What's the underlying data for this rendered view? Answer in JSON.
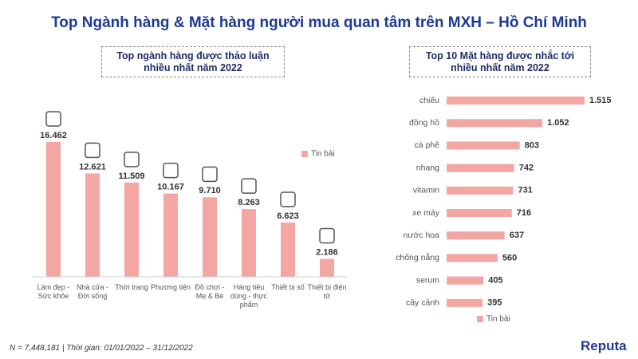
{
  "title": "Top Ngành hàng & Mặt hàng người mua quan tâm trên MXH – Hồ Chí Minh",
  "footnote": "N = 7,448,181 | Thời gian: 01/01/2022 – 31/12/2022",
  "logo": "Reputa",
  "chart_data": [
    {
      "type": "bar",
      "title": "Top ngành hàng được thảo luận nhiều nhất năm 2022",
      "categories": [
        "Làm đẹp - Sức khỏe",
        "Nhà cửa - Đời sống",
        "Thời trang",
        "Phương tiện",
        "Đồ chơi - Mẹ & Bé",
        "Hàng tiêu dùng - thực phẩm",
        "Thiết bị số",
        "Thiết bị điện tử"
      ],
      "series": [
        {
          "name": "Tin bài",
          "color": "#f4a6a3",
          "values": [
            16462,
            12621,
            11509,
            10167,
            9710,
            8263,
            6623,
            2186
          ],
          "value_labels": [
            "16.462",
            "12.621",
            "11.509",
            "10.167",
            "9.710",
            "8.263",
            "6.623",
            "2.186"
          ]
        }
      ],
      "legend": "upper right"
    },
    {
      "type": "hbar",
      "title": "Top 10 Mặt hàng được nhắc tới nhiều nhất năm 2022",
      "categories": [
        "chiếu",
        "đồng hồ",
        "cà phê",
        "nhang",
        "vitamin",
        "xe máy",
        "nước hoa",
        "chống nắng",
        "serum",
        "cây cảnh"
      ],
      "series": [
        {
          "name": "Tin bài",
          "color": "#f4a6a3",
          "values": [
            1515,
            1052,
            803,
            742,
            731,
            716,
            637,
            560,
            405,
            395
          ],
          "value_labels": [
            "1.515",
            "1.052",
            "803",
            "742",
            "731",
            "716",
            "637",
            "560",
            "405",
            "395"
          ]
        }
      ],
      "legend": "bottom"
    }
  ]
}
